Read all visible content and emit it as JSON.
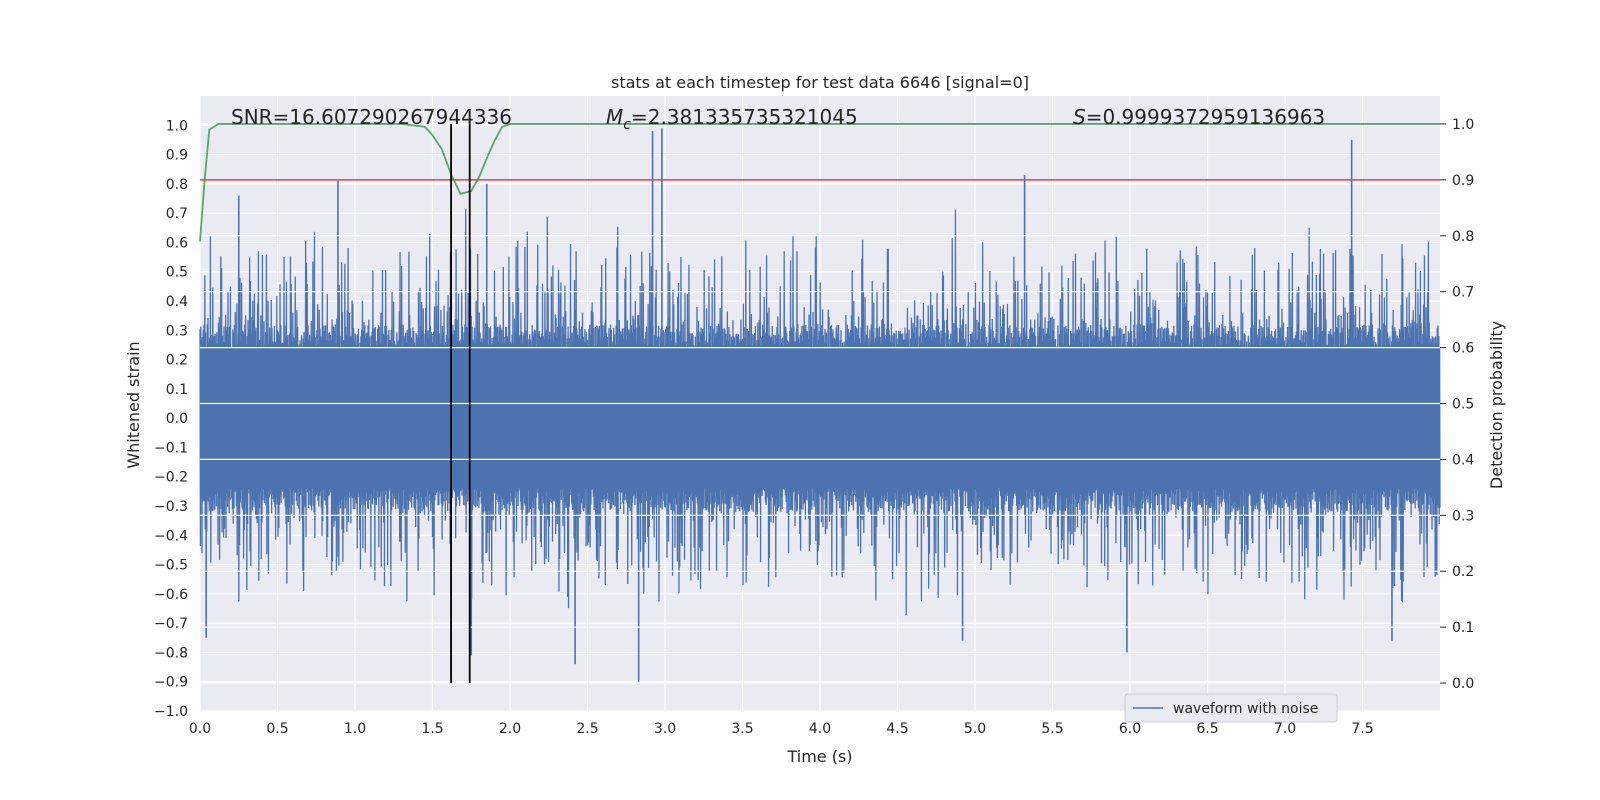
{
  "chart_data": {
    "type": "line",
    "title": "stats at each timestep for test data 6646 [signal=0]",
    "xlabel": "Time (s)",
    "ylabel": "Whitened strain",
    "y2label": "Detection probability",
    "xlim": [
      0.0,
      8.0
    ],
    "ylim": [
      -1.0,
      1.1
    ],
    "y2lim": [
      -0.05,
      1.05
    ],
    "x_ticks": [
      "0.0",
      "0.5",
      "1.0",
      "1.5",
      "2.0",
      "2.5",
      "3.0",
      "3.5",
      "4.0",
      "4.5",
      "5.0",
      "5.5",
      "6.0",
      "6.5",
      "7.0",
      "7.5"
    ],
    "y_ticks": [
      "−1.0",
      "−0.9",
      "−0.8",
      "−0.7",
      "−0.6",
      "−0.5",
      "−0.4",
      "−0.3",
      "−0.2",
      "−0.1",
      "0.0",
      "0.1",
      "0.2",
      "0.3",
      "0.4",
      "0.5",
      "0.6",
      "0.7",
      "0.8",
      "0.9",
      "1.0"
    ],
    "y2_ticks": [
      "0.0",
      "0.1",
      "0.2",
      "0.3",
      "0.4",
      "0.5",
      "0.6",
      "0.7",
      "0.8",
      "0.9",
      "1.0"
    ],
    "grid": true,
    "legend": {
      "position": "lower-right",
      "entries": [
        "waveform with noise"
      ]
    },
    "annotations": {
      "snr": "SNR=16.607290267944336",
      "mc_symbol": "M",
      "mc_sub": "c",
      "mc_value": "=2.381335735321045",
      "s_symbol": "S",
      "s_value": "=0.9999372959136963"
    },
    "series": [
      {
        "name": "waveform with noise",
        "color": "#4c72b0",
        "sample_rate": 2048,
        "noise_envelope": {
          "core_amplitude": 0.25,
          "typical_peak": 0.45
        },
        "notable_peaks": [
          {
            "x": 0.04,
            "y": -0.75
          },
          {
            "x": 0.25,
            "y": 0.76
          },
          {
            "x": 0.89,
            "y": 0.81
          },
          {
            "x": 1.62,
            "y": -0.89
          },
          {
            "x": 1.75,
            "y": -0.81
          },
          {
            "x": 1.85,
            "y": 0.8
          },
          {
            "x": 2.42,
            "y": -0.84
          },
          {
            "x": 2.83,
            "y": -0.9
          },
          {
            "x": 2.92,
            "y": 0.98
          },
          {
            "x": 2.98,
            "y": 0.99
          },
          {
            "x": 4.92,
            "y": -0.76
          },
          {
            "x": 5.32,
            "y": 0.83
          },
          {
            "x": 5.98,
            "y": -0.8
          },
          {
            "x": 7.43,
            "y": 0.95
          },
          {
            "x": 7.69,
            "y": -0.76
          }
        ]
      },
      {
        "name": "",
        "axis": "right",
        "color": "#55a868",
        "x": [
          0.0,
          0.03,
          0.06,
          0.12,
          0.2,
          0.5,
          1.0,
          1.3,
          1.45,
          1.5,
          1.56,
          1.62,
          1.68,
          1.75,
          1.8,
          1.86,
          1.9,
          1.95,
          2.0,
          2.05,
          2.2,
          3.0,
          5.0,
          7.0,
          8.0
        ],
        "y": [
          0.79,
          0.9,
          0.99,
          1.0,
          1.0,
          1.0,
          1.0,
          1.0,
          0.995,
          0.98,
          0.955,
          0.91,
          0.875,
          0.88,
          0.905,
          0.945,
          0.97,
          0.995,
          1.0,
          1.0,
          1.0,
          1.0,
          1.0,
          1.0,
          1.0
        ]
      }
    ],
    "threshold_line": {
      "axis": "right",
      "y": 0.9,
      "color": "#c44e52"
    },
    "vertical_lines": [
      {
        "x": 1.62,
        "color": "#000000"
      },
      {
        "x": 1.74,
        "color": "#000000"
      }
    ]
  }
}
